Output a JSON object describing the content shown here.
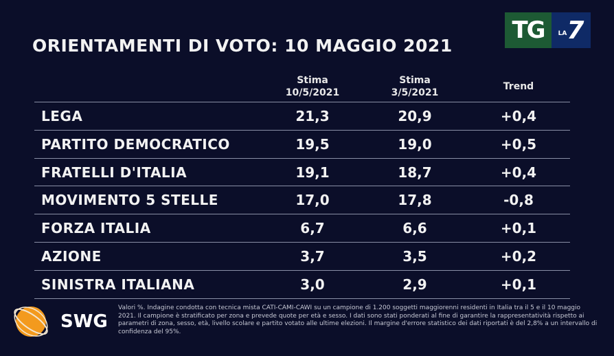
{
  "title": "ORIENTAMENTI DI VOTO: 10 MAGGIO 2021",
  "logo": {
    "tg": "TG",
    "la": "LA",
    "seven": "7"
  },
  "chart_data": {
    "type": "table",
    "title": "ORIENTAMENTI DI VOTO: 10 MAGGIO 2021",
    "columns": [
      {
        "line1": "Stima",
        "line2": "10/5/2021"
      },
      {
        "line1": "Stima",
        "line2": "3/5/2021"
      },
      {
        "line1": "Trend",
        "line2": ""
      }
    ],
    "rows": [
      {
        "party": "LEGA",
        "current": "21,3",
        "previous": "20,9",
        "trend": "+0,4"
      },
      {
        "party": "PARTITO DEMOCRATICO",
        "current": "19,5",
        "previous": "19,0",
        "trend": "+0,5"
      },
      {
        "party": "FRATELLI D'ITALIA",
        "current": "19,1",
        "previous": "18,7",
        "trend": "+0,4"
      },
      {
        "party": "MOVIMENTO 5 STELLE",
        "current": "17,0",
        "previous": "17,8",
        "trend": "-0,8"
      },
      {
        "party": "FORZA ITALIA",
        "current": "6,7",
        "previous": "6,6",
        "trend": "+0,1"
      },
      {
        "party": "AZIONE",
        "current": "3,7",
        "previous": "3,5",
        "trend": "+0,2"
      },
      {
        "party": "SINISTRA ITALIANA",
        "current": "3,0",
        "previous": "2,9",
        "trend": "+0,1"
      }
    ]
  },
  "footnote": "Valori %. Indagine condotta con tecnica mista CATI-CAMI-CAWI su un campione di 1.200 soggetti maggiorenni residenti in Italia tra il 5 e il 10 maggio 2021. Il campione è stratificato per zona e prevede quote per età e sesso. I dati sono stati ponderati al fine di garantire la rappresentatività rispetto ai parametri di zona, sesso, età, livello scolare e partito votato alle ultime elezioni. Il margine d'errore statistico dei dati riportati è del 2,8% a un intervallo di confidenza del 95%.",
  "source_logo": "SWG",
  "colors": {
    "background": "#0b0e29",
    "tg_green": "#1d5a34",
    "tg_blue": "#0f2a66",
    "swg_orange": "#f39a1e"
  }
}
